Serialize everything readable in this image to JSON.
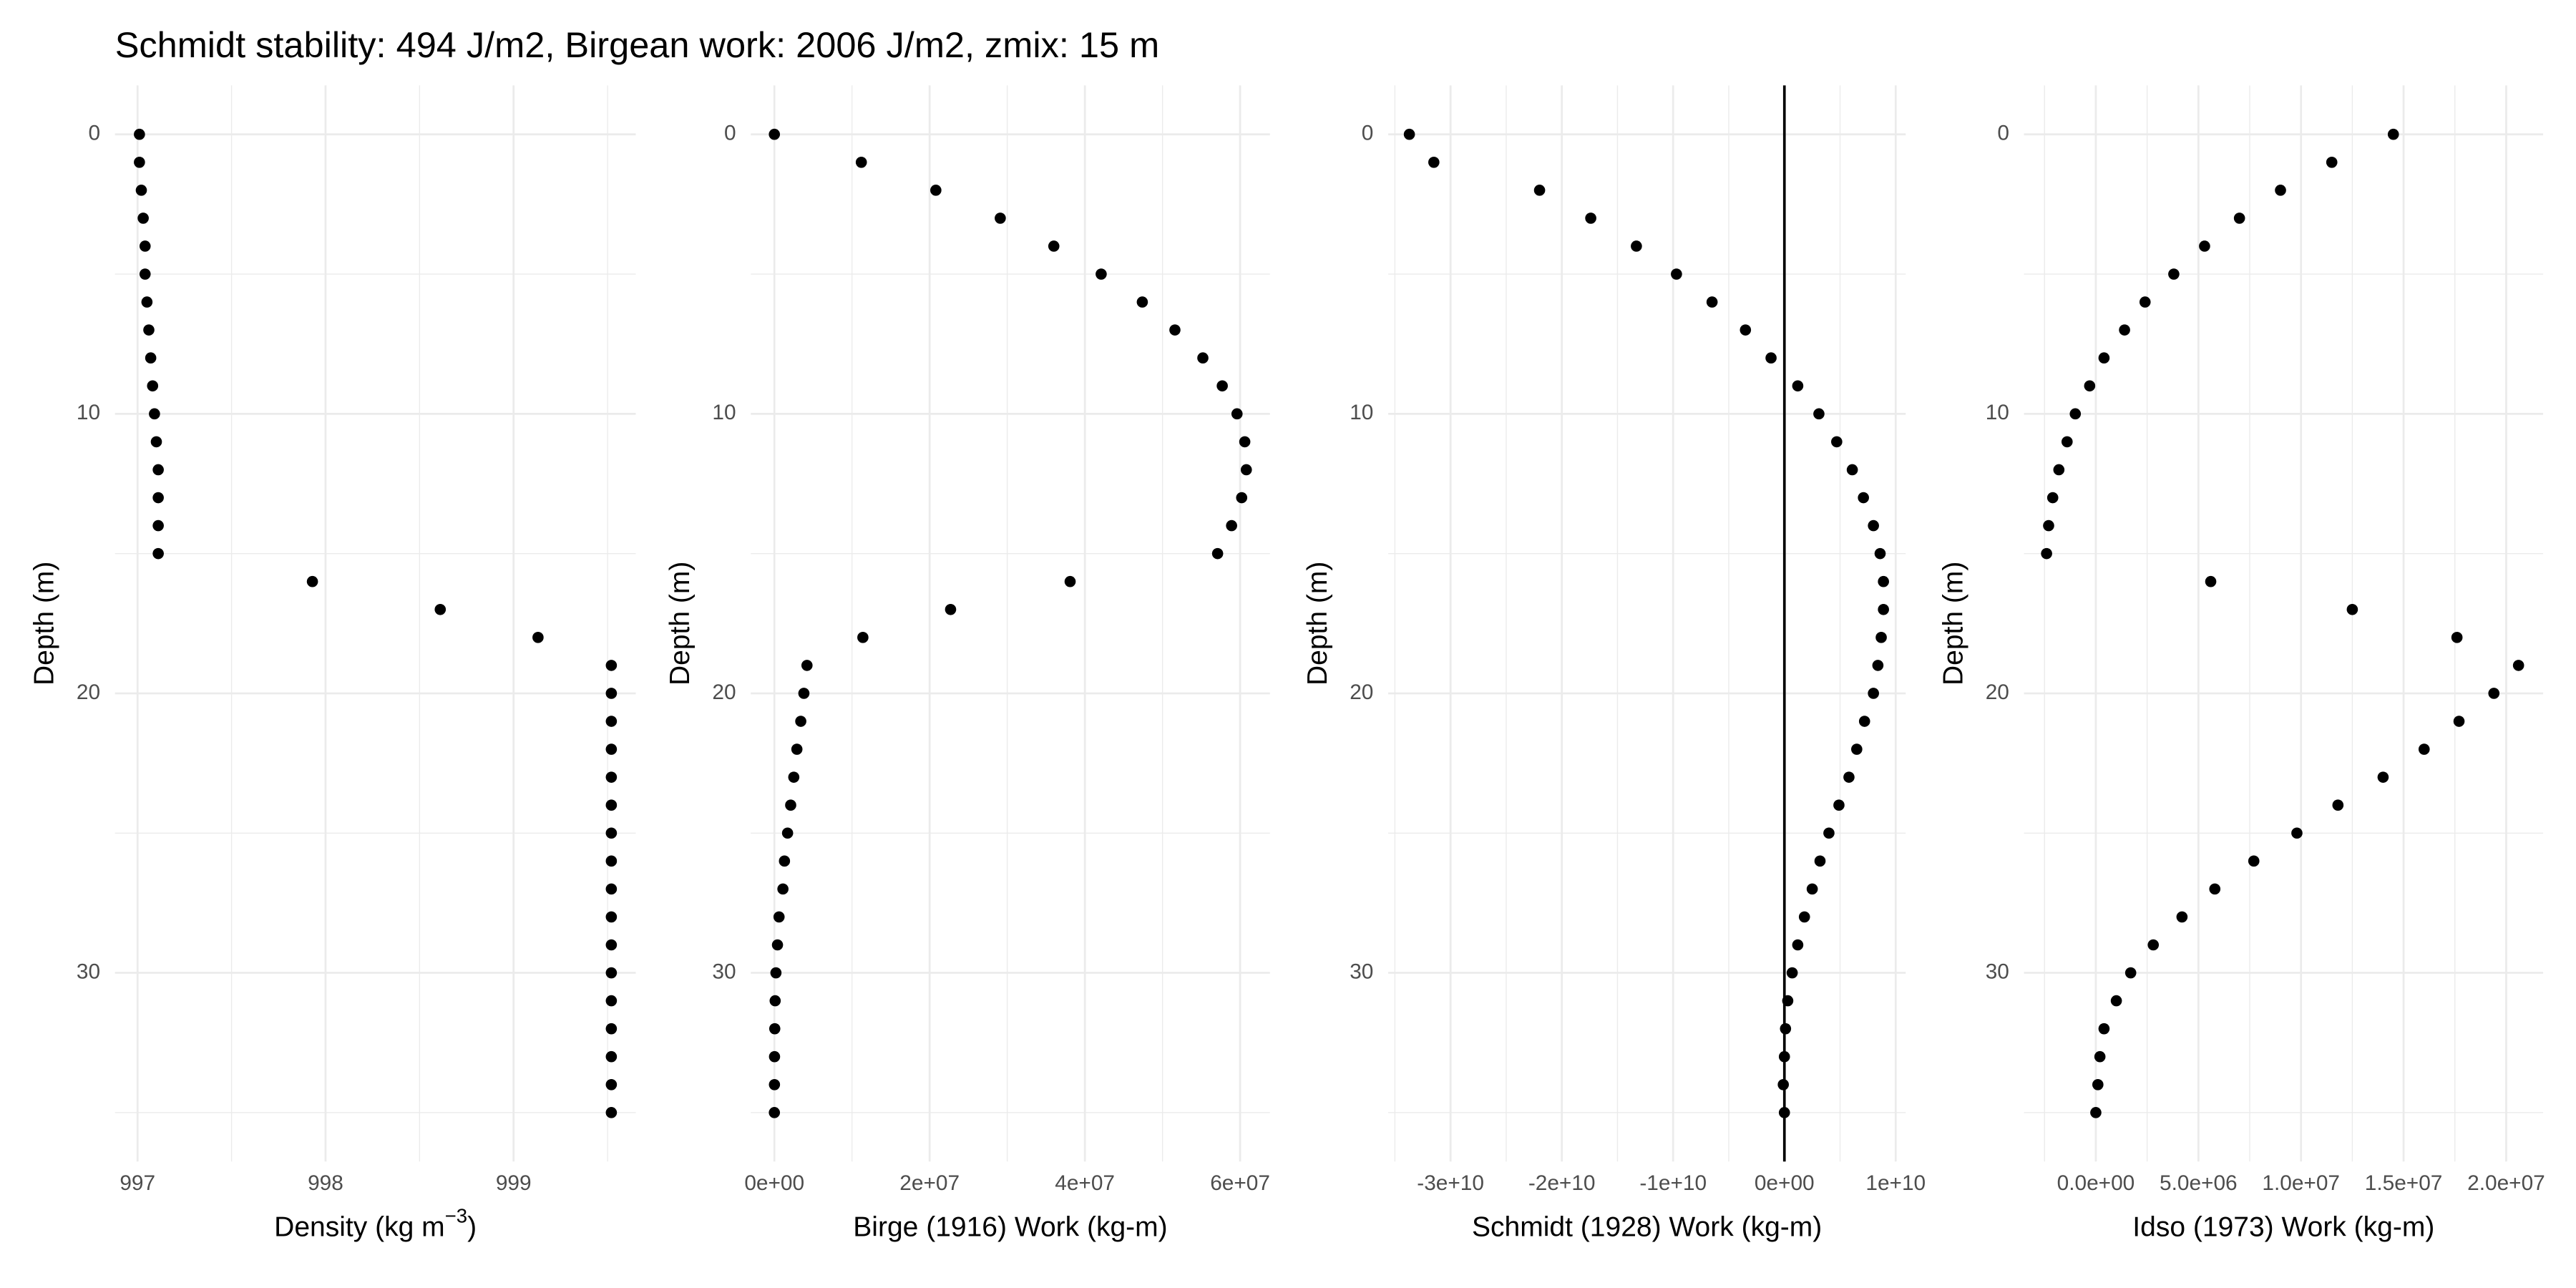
{
  "chart_data": [
    {
      "type": "scatter",
      "title": "Schmidt stability: 494 J/m2, Birgean work: 2006 J/m2, zmix: 15 m",
      "x_label": "Density (kg m",
      "x_label_sup": "−3",
      "x_label_end": ")",
      "y_label": "Depth (m)",
      "color": "#000000",
      "grid": true,
      "y_reversed": true,
      "x": [
        997.01,
        997.01,
        997.02,
        997.03,
        997.04,
        997.04,
        997.05,
        997.06,
        997.07,
        997.08,
        997.09,
        997.1,
        997.11,
        997.11,
        997.11,
        997.11,
        997.93,
        998.61,
        999.13,
        999.52,
        999.52,
        999.52,
        999.52,
        999.52,
        999.52,
        999.52,
        999.52,
        999.52,
        999.52,
        999.52,
        999.52,
        999.52,
        999.52,
        999.52,
        999.52,
        999.52
      ],
      "y": [
        0,
        1,
        2,
        3,
        4,
        5,
        6,
        7,
        8,
        9,
        10,
        11,
        12,
        13,
        14,
        15,
        16,
        17,
        18,
        19,
        20,
        21,
        22,
        23,
        24,
        25,
        26,
        27,
        28,
        29,
        30,
        31,
        32,
        33,
        34,
        35
      ],
      "xlim": [
        996.88,
        999.65
      ],
      "xticks": [
        997,
        998,
        999
      ],
      "ylim": [
        -1.75,
        36.75
      ],
      "yticks": [
        0,
        10,
        20,
        30
      ]
    },
    {
      "type": "scatter",
      "x_label": "Birge (1916) Work (kg-m)",
      "y_label": "Depth (m)",
      "color": "#000000",
      "grid": true,
      "y_reversed": true,
      "x": [
        0,
        11200000,
        20800000,
        29100000,
        36000000,
        42100000,
        47400000,
        51600000,
        55200000,
        57700000,
        59600000,
        60600000,
        60800000,
        60200000,
        58900000,
        57100000,
        38100000,
        22700000,
        11400000,
        4200000,
        3800000,
        3400000,
        2900000,
        2500000,
        2100000,
        1700000,
        1300000,
        1100000,
        600000,
        400000,
        200000,
        100000,
        50000,
        20000,
        10000,
        0
      ],
      "y": [
        0,
        1,
        2,
        3,
        4,
        5,
        6,
        7,
        8,
        9,
        10,
        11,
        12,
        13,
        14,
        15,
        16,
        17,
        18,
        19,
        20,
        21,
        22,
        23,
        24,
        25,
        26,
        27,
        28,
        29,
        30,
        31,
        32,
        33,
        34,
        35
      ],
      "xlim": [
        -3040000,
        63840000
      ],
      "xticks": [
        {
          "value": 0,
          "label": "0e+00"
        },
        {
          "value": 20000000,
          "label": "2e+07"
        },
        {
          "value": 40000000,
          "label": "4e+07"
        },
        {
          "value": 60000000,
          "label": "6e+07"
        }
      ],
      "ylim": [
        -1.75,
        36.75
      ],
      "yticks": [
        0,
        10,
        20,
        30
      ]
    },
    {
      "type": "scatter",
      "x_label": "Schmidt (1928) Work (kg-m)",
      "y_label": "Depth (m)",
      "color": "#000000",
      "grid": true,
      "y_reversed": true,
      "vline": 0,
      "x": [
        -33700000000,
        -31500000000,
        -22000000000,
        -17400000000,
        -13300000000,
        -9700000000,
        -6500000000,
        -3500000000,
        -1200000000,
        1200000000,
        3100000000,
        4700000000,
        6100000000,
        7100000000,
        8000000000,
        8600000000,
        8900000000,
        8900000000,
        8700000000,
        8400000000,
        8000000000,
        7200000000,
        6500000000,
        5800000000,
        4900000000,
        4000000000,
        3200000000,
        2500000000,
        1800000000,
        1200000000,
        700000000,
        300000000,
        100000000,
        0,
        -100000000,
        0
      ],
      "y": [
        0,
        1,
        2,
        3,
        4,
        5,
        6,
        7,
        8,
        9,
        10,
        11,
        12,
        13,
        14,
        15,
        16,
        17,
        18,
        19,
        20,
        21,
        22,
        23,
        24,
        25,
        26,
        27,
        28,
        29,
        30,
        31,
        32,
        33,
        34,
        35
      ],
      "xlim": [
        -35600000000,
        10900000000
      ],
      "xticks": [
        {
          "value": -30000000000,
          "label": "-3e+10"
        },
        {
          "value": -20000000000,
          "label": "-2e+10"
        },
        {
          "value": -10000000000,
          "label": "-1e+10"
        },
        {
          "value": 0,
          "label": "0e+00"
        },
        {
          "value": 10000000000,
          "label": "1e+10"
        }
      ],
      "ylim": [
        -1.75,
        36.75
      ],
      "yticks": [
        0,
        10,
        20,
        30
      ]
    },
    {
      "type": "scatter",
      "x_label": "Idso (1973) Work (kg-m)",
      "y_label": "Depth (m)",
      "color": "#000000",
      "grid": true,
      "y_reversed": true,
      "x": [
        14500000,
        11500000,
        9000000,
        7000000,
        5300000,
        3800000,
        2400000,
        1400000,
        400000,
        -300000,
        -1000000,
        -1400000,
        -1800000,
        -2100000,
        -2300000,
        -2400000,
        5600000,
        12500000,
        17600000,
        20600000,
        19400000,
        17700000,
        16000000,
        14000000,
        11800000,
        9800000,
        7700000,
        5800000,
        4200000,
        2800000,
        1700000,
        1000000,
        400000,
        200000,
        100000,
        0
      ],
      "y": [
        0,
        1,
        2,
        3,
        4,
        5,
        6,
        7,
        8,
        9,
        10,
        11,
        12,
        13,
        14,
        15,
        16,
        17,
        18,
        19,
        20,
        21,
        22,
        23,
        24,
        25,
        26,
        27,
        28,
        29,
        30,
        31,
        32,
        33,
        34,
        35
      ],
      "xlim": [
        -3500000,
        21800000
      ],
      "xticks": [
        {
          "value": 0,
          "label": "0.0e+00"
        },
        {
          "value": 5000000,
          "label": "5.0e+06"
        },
        {
          "value": 10000000,
          "label": "1.0e+07"
        },
        {
          "value": 15000000,
          "label": "1.5e+07"
        },
        {
          "value": 20000000,
          "label": "2.0e+07"
        }
      ],
      "ylim": [
        -1.75,
        36.75
      ],
      "yticks": [
        0,
        10,
        20,
        30
      ]
    }
  ]
}
